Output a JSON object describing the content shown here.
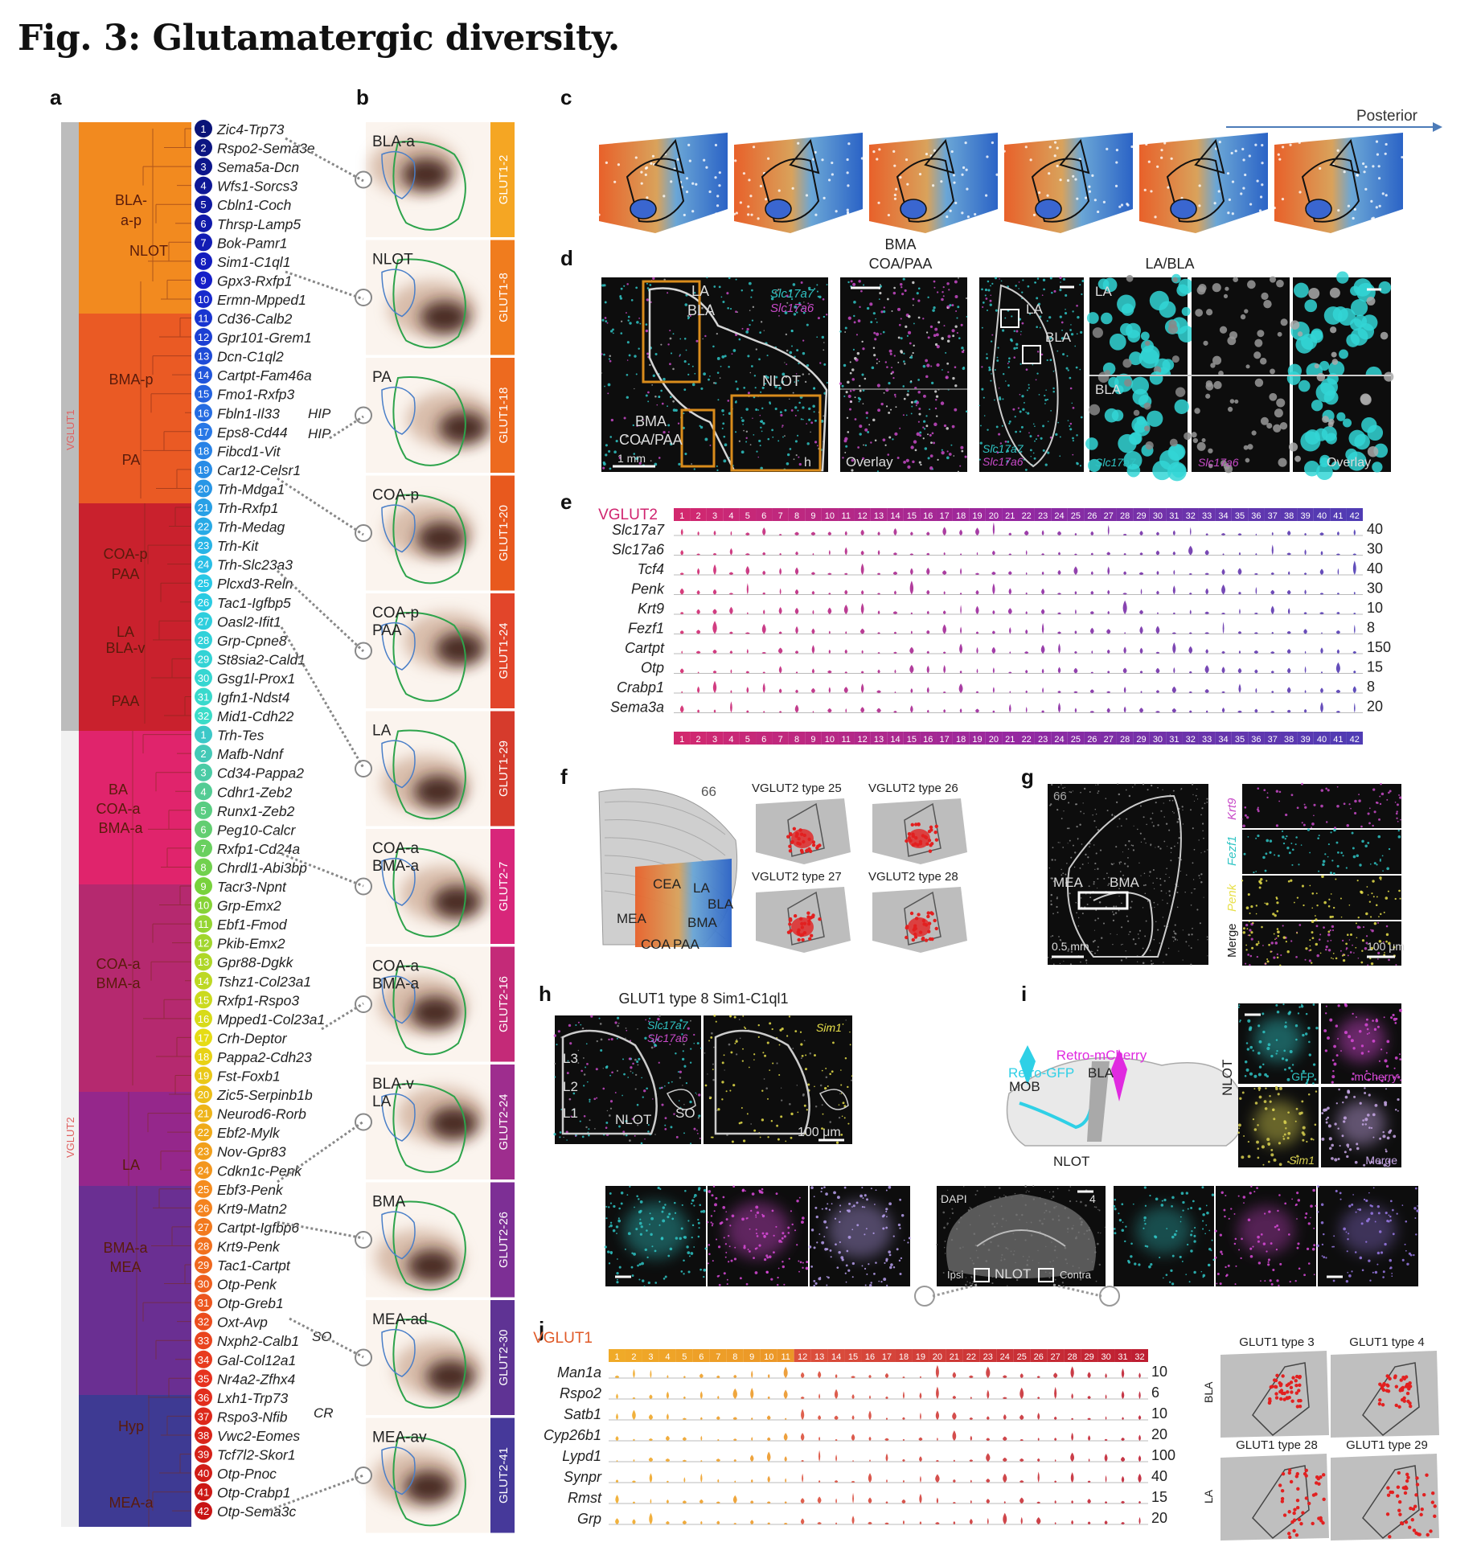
{
  "title": "Fig. 3: Glutamatergic diversity.",
  "panel_labels": [
    "a",
    "b",
    "c",
    "d",
    "e",
    "f",
    "g",
    "h",
    "i",
    "j"
  ],
  "a": {
    "class_labels": [
      "VGLUT1",
      "VGLUT2"
    ],
    "region_groups": [
      {
        "lines": [
          "BLA-",
          "a-p",
          "NLOT"
        ],
        "color": "#f28a1f"
      },
      {
        "lines": [
          "BMA-p",
          "PA"
        ],
        "color": "#ea5a24"
      },
      {
        "lines": [
          "COA-p",
          "PAA",
          "LA",
          "BLA-v",
          "PAA"
        ],
        "color": "#c9212d"
      },
      {
        "lines": [
          "BA",
          "COA-a",
          "BMA-a"
        ],
        "color": "#e0246c"
      },
      {
        "lines": [
          "COA-a",
          "BMA-a"
        ],
        "color": "#b5296f"
      },
      {
        "lines": [
          "LA"
        ],
        "color": "#95278b"
      },
      {
        "lines": [
          "BMA-a",
          "MEA"
        ],
        "color": "#6a2f92"
      },
      {
        "lines": [
          "Hyp",
          "MEA-a"
        ],
        "color": "#3e3a93"
      }
    ],
    "glut1_types": [
      "Zic4-Trp73",
      "Rspo2-Sema3e",
      "Sema5a-Dcn",
      "Wfs1-Sorcs3",
      "Cbln1-Coch",
      "Thrsp-Lamp5",
      "Bok-Pamr1",
      "Sim1-C1ql1",
      "Gpx3-Rxfp1",
      "Ermn-Mpped1",
      "Cd36-Calb2",
      "Gpr101-Grem1",
      "Dcn-C1ql2",
      "Cartpt-Fam46a",
      "Fmo1-Rxfp3",
      "Fbln1-Il33",
      "Eps8-Cd44",
      "Fibcd1-Vit",
      "Car12-Celsr1",
      "Trh-Mdga1",
      "Trh-Rxfp1",
      "Trh-Medag",
      "Trh-Kit",
      "Trh-Slc23a3",
      "Plcxd3-Reln",
      "Tac1-Igfbp5",
      "Oasl2-Ifit1",
      "Grp-Cpne8",
      "St8sia2-Cald1",
      "Gsg1l-Prox1",
      "Igfn1-Ndst4",
      "Mid1-Cdh22"
    ],
    "glut2_types": [
      "Trh-Tes",
      "Mafb-Ndnf",
      "Cd34-Pappa2",
      "Cdhr1-Zeb2",
      "Runx1-Zeb2",
      "Peg10-Calcr",
      "Rxfp1-Cd24a",
      "Chrdl1-Abi3bp",
      "Tacr3-Npnt",
      "Grp-Emx2",
      "Ebf1-Fmod",
      "Pkib-Emx2",
      "Gpr88-Dgkk",
      "Tshz1-Col23a1",
      "Rxfp1-Rspo3",
      "Mpped1-Col23a1",
      "Crh-Deptor",
      "Pappa2-Cdh23",
      "Fst-Foxb1",
      "Zic5-Serpinb1b",
      "Neurod6-Rorb",
      "Ebf2-Mylk",
      "Nov-Gpr83",
      "Cdkn1c-Penk",
      "Ebf3-Penk",
      "Krt9-Matn2",
      "Cartpt-Igfbp6",
      "Krt9-Penk",
      "Tac1-Cartpt",
      "Otp-Penk",
      "Otp-Greb1",
      "Oxt-Avp",
      "Nxph2-Calb1",
      "Gal-Col12a1",
      "Nr4a2-Zfhx4",
      "Lxh1-Trp73",
      "Rspo3-Nfib",
      "Vwc2-Eomes",
      "Tcf7l2-Skor1",
      "Otp-Pnoc",
      "Otp-Crabp1",
      "Otp-Sema3c"
    ],
    "annotations": [
      "HIP",
      "HIP",
      "SO",
      "CR"
    ]
  },
  "b": {
    "regions": [
      "BLA-a",
      "NLOT",
      "PA",
      "COA-p",
      "COA-p PAA",
      "LA",
      "COA-a BMA-a",
      "COA-a BMA-a",
      "BLA-v LA",
      "BMA",
      "MEA-ad",
      "MEA-av"
    ],
    "types": [
      "GLUT1-2",
      "GLUT1-8",
      "GLUT1-18",
      "GLUT1-20",
      "GLUT1-24",
      "GLUT1-29",
      "GLUT2-7",
      "GLUT2-16",
      "GLUT2-24",
      "GLUT2-26",
      "GLUT2-30",
      "GLUT2-41"
    ],
    "type_colors": [
      "#f5a623",
      "#f07c1e",
      "#ed6a1f",
      "#e8591e",
      "#e2452a",
      "#d63b2c",
      "#d8267a",
      "#c42a78",
      "#9e2d8e",
      "#7d2f95",
      "#5f3394",
      "#46399a"
    ]
  },
  "c": {
    "axis_label": "Posterior"
  },
  "d": {
    "labels": [
      "LA",
      "BLA",
      "NLOT",
      "BMA",
      "COA/PAA",
      "1 mm",
      "h",
      "Slc17a7",
      "Slc17a6",
      "Overlay",
      "BMA",
      "COA/PAA",
      "LA/BLA",
      "LA",
      "BLA",
      "Slc17a7",
      "Slc17a6",
      "Overlay",
      "LA",
      "BLA"
    ]
  },
  "e": {
    "class_label": "VGLUT2",
    "genes": [
      "Slc17a7",
      "Slc17a6",
      "Tcf4",
      "Penk",
      "Krt9",
      "Fezf1",
      "Cartpt",
      "Otp",
      "Crabp1",
      "Sema3a"
    ],
    "max_values": [
      "40",
      "30",
      "40",
      "30",
      "10",
      "8",
      "150",
      "15",
      "8",
      "20"
    ],
    "n_types": 42
  },
  "f": {
    "section": "66",
    "regions": [
      "CEA",
      "LA",
      "BLA",
      "MEA",
      "BMA",
      "COA",
      "PAA"
    ],
    "maps": [
      "VGLUT2 type 25",
      "VGLUT2 type 26",
      "VGLUT2 type 27",
      "VGLUT2 type 28"
    ]
  },
  "g": {
    "section": "66",
    "regions": [
      "MEA",
      "BMA"
    ],
    "scale": "0.5 mm",
    "channels": [
      "Krt9",
      "Fezf1",
      "Penk",
      "Merge"
    ],
    "scale2": "100 μm"
  },
  "h": {
    "title": "GLUT1 type 8 Sim1-C1ql1",
    "labels": [
      "L3",
      "L2",
      "L1",
      "NLOT",
      "SO",
      "Slc17a7",
      "Slc17a6",
      "Sim1",
      "100 μm"
    ]
  },
  "i": {
    "labels": [
      "Retro-mCherry",
      "Retro-GFP",
      "BLA",
      "MOB",
      "NLOT"
    ],
    "region": "NLOT",
    "channels": [
      "GFP",
      "mCherry",
      "Sim1",
      "Merge"
    ],
    "section_labels": [
      "DAPI",
      "4",
      "Ipsi",
      "NLOT",
      "Contra"
    ]
  },
  "j": {
    "class_label": "VGLUT1",
    "genes": [
      "Man1a",
      "Rspo2",
      "Satb1",
      "Cyp26b1",
      "Lypd1",
      "Synpr",
      "Rmst",
      "Grp"
    ],
    "max_values": [
      "10",
      "6",
      "10",
      "20",
      "100",
      "40",
      "15",
      "20"
    ],
    "n_types": 32,
    "maps": [
      "GLUT1 type 3",
      "GLUT1 type 4",
      "GLUT1 type 28",
      "GLUT1 type 29"
    ],
    "row_labels": [
      "BLA",
      "LA"
    ]
  }
}
